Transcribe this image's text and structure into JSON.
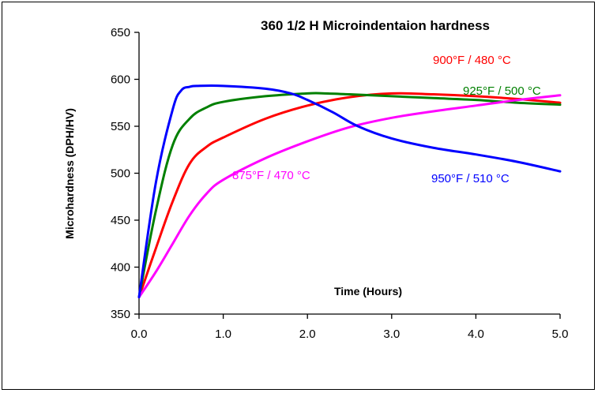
{
  "chart_data": {
    "type": "line",
    "title": "360 1/2 H Microindentaion hardness",
    "xlabel": "Time (Hours)",
    "ylabel": "Microhardness (DPH/HV)",
    "xlim": [
      0,
      5
    ],
    "ylim": [
      350,
      650
    ],
    "x_ticks": [
      "0.0",
      "1.0",
      "2.0",
      "3.0",
      "4.0",
      "5.0"
    ],
    "y_ticks": [
      "350",
      "400",
      "450",
      "500",
      "550",
      "600",
      "650"
    ],
    "grid": false,
    "series": [
      {
        "name": "900°F / 480 °C",
        "color": "#ff0000",
        "x": [
          0,
          0.2,
          0.4,
          0.6,
          0.8,
          1.0,
          1.5,
          2.0,
          2.5,
          3.0,
          3.5,
          4.0,
          4.5,
          5.0
        ],
        "y": [
          368,
          420,
          470,
          510,
          528,
          538,
          558,
          572,
          581,
          585,
          584,
          582,
          579,
          575
        ]
      },
      {
        "name": "925°F / 500 °C",
        "color": "#008000",
        "x": [
          0,
          0.2,
          0.4,
          0.6,
          0.8,
          1.0,
          1.5,
          2.0,
          2.2,
          2.5,
          3.0,
          3.5,
          4.0,
          4.5,
          5.0
        ],
        "y": [
          368,
          460,
          530,
          558,
          570,
          576,
          582,
          585,
          585,
          584,
          582,
          580,
          578,
          575,
          573
        ]
      },
      {
        "name": "875°F / 470 °C",
        "color": "#ff00ff",
        "x": [
          0,
          0.2,
          0.4,
          0.6,
          0.8,
          1.0,
          1.5,
          2.0,
          2.5,
          3.0,
          3.5,
          4.0,
          4.5,
          5.0
        ],
        "y": [
          368,
          395,
          425,
          455,
          478,
          493,
          516,
          534,
          549,
          559,
          566,
          572,
          578,
          583
        ]
      },
      {
        "name": "950°F / 510 °C",
        "color": "#0000ff",
        "x": [
          0,
          0.2,
          0.4,
          0.5,
          0.6,
          0.7,
          1.0,
          1.5,
          1.8,
          2.0,
          2.3,
          2.6,
          3.0,
          3.5,
          4.0,
          4.5,
          5.0
        ],
        "y": [
          368,
          490,
          568,
          588,
          592,
          593,
          593,
          590,
          585,
          578,
          565,
          550,
          537,
          527,
          520,
          512,
          502
        ]
      }
    ]
  }
}
